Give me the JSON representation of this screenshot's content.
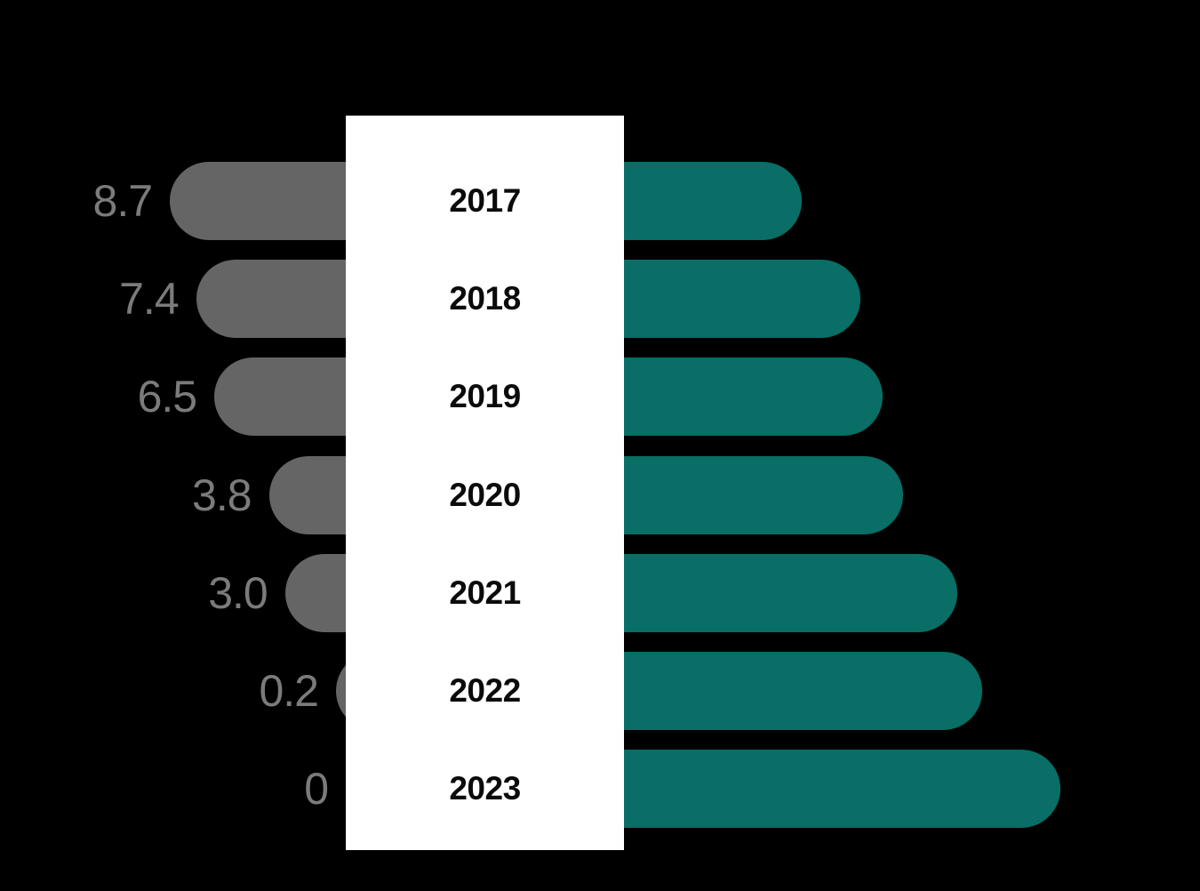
{
  "canvas": {
    "background": "#000000"
  },
  "chart_data": {
    "type": "bar",
    "variant": "diverging_butterfly",
    "orientation": "horizontal",
    "title": "",
    "categories": [
      "2017",
      "2018",
      "2019",
      "2020",
      "2021",
      "2022",
      "2023"
    ],
    "series": [
      {
        "name": "left-gray-series",
        "side": "left",
        "bar_color": "#656565",
        "label_color": "#7b7b7b",
        "values": [
          8.7,
          7.4,
          6.5,
          3.8,
          3.0,
          0.2,
          0
        ],
        "data_labels": [
          "8.7",
          "7.4",
          "6.5",
          "3.8",
          "3.0",
          "0.2",
          "0"
        ],
        "data_labels_shown": true
      },
      {
        "name": "right-teal-series",
        "side": "right",
        "bar_color": "#086e66",
        "values": [
          8.8,
          11.7,
          12.8,
          13.8,
          16.5,
          17.7,
          21.6
        ],
        "data_labels_shown": false,
        "values_estimated_from_bar_lengths": true
      }
    ],
    "axes": {
      "gridlines": false,
      "axis_lines": false,
      "tick_labels": "none"
    },
    "legend": {
      "shown": false,
      "position": "none"
    },
    "colors": {
      "background": "#000000",
      "center_panel": "#ffffff",
      "category_text": "#0b0b0b"
    }
  }
}
